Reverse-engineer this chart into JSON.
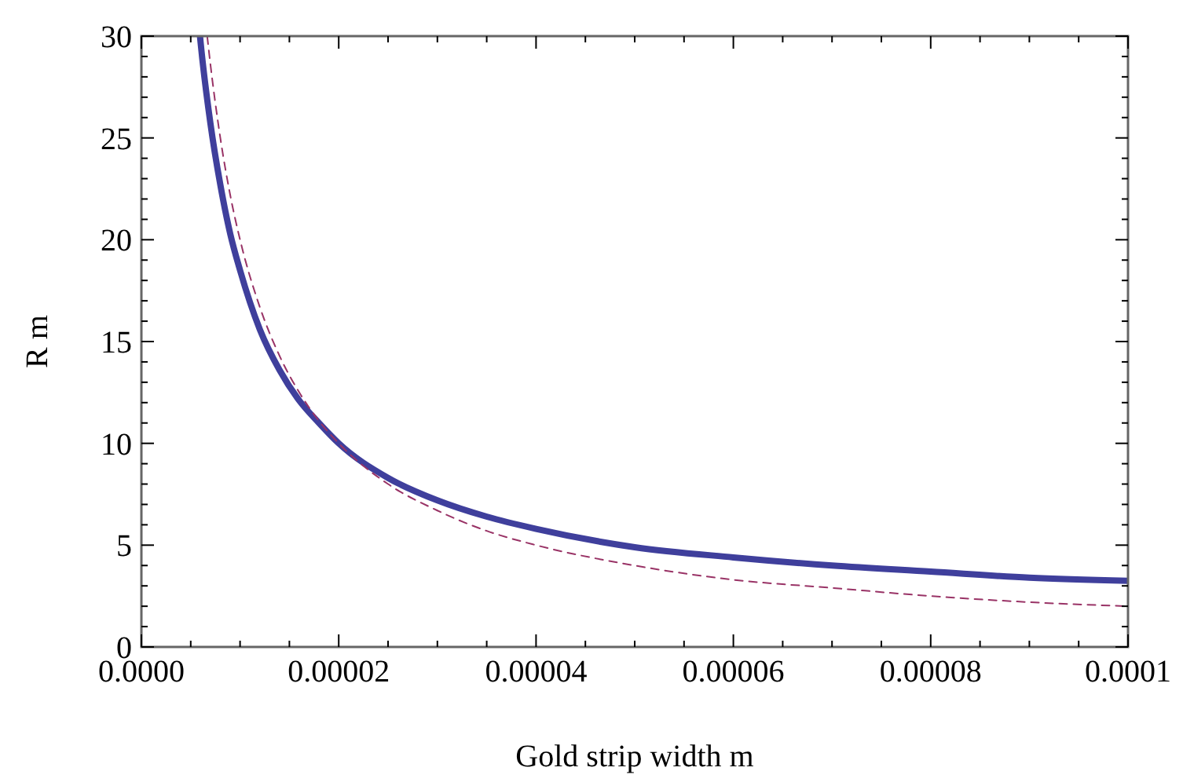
{
  "chart_data": {
    "type": "line",
    "xlabel": "Gold strip width m",
    "ylabel": "R m",
    "xlim": [
      0,
      0.0001
    ],
    "ylim": [
      0,
      30
    ],
    "xticks": [
      {
        "value": 0,
        "label": "0.0000"
      },
      {
        "value": 5e-06,
        "label": null
      },
      {
        "value": 1e-05,
        "label": null
      },
      {
        "value": 1.5e-05,
        "label": null
      },
      {
        "value": 2e-05,
        "label": "0.00002"
      },
      {
        "value": 2.5e-05,
        "label": null
      },
      {
        "value": 3e-05,
        "label": null
      },
      {
        "value": 3.5e-05,
        "label": null
      },
      {
        "value": 4e-05,
        "label": "0.00004"
      },
      {
        "value": 4.5e-05,
        "label": null
      },
      {
        "value": 5e-05,
        "label": null
      },
      {
        "value": 5.5e-05,
        "label": null
      },
      {
        "value": 6e-05,
        "label": "0.00006"
      },
      {
        "value": 6.5e-05,
        "label": null
      },
      {
        "value": 7e-05,
        "label": null
      },
      {
        "value": 7.5e-05,
        "label": null
      },
      {
        "value": 8e-05,
        "label": "0.00008"
      },
      {
        "value": 8.5e-05,
        "label": null
      },
      {
        "value": 9e-05,
        "label": null
      },
      {
        "value": 9.5e-05,
        "label": null
      },
      {
        "value": 0.0001,
        "label": "0.0001"
      }
    ],
    "yticks": [
      0,
      {
        "value": 1,
        "label": null
      },
      {
        "value": 2,
        "label": null
      },
      {
        "value": 3,
        "label": null
      },
      {
        "value": 4,
        "label": null
      },
      5,
      {
        "value": 6,
        "label": null
      },
      {
        "value": 7,
        "label": null
      },
      {
        "value": 8,
        "label": null
      },
      {
        "value": 9,
        "label": null
      },
      10,
      {
        "value": 11,
        "label": null
      },
      {
        "value": 12,
        "label": null
      },
      {
        "value": 13,
        "label": null
      },
      {
        "value": 14,
        "label": null
      },
      15,
      {
        "value": 16,
        "label": null
      },
      {
        "value": 17,
        "label": null
      },
      {
        "value": 18,
        "label": null
      },
      {
        "value": 19,
        "label": null
      },
      20,
      {
        "value": 21,
        "label": null
      },
      {
        "value": 22,
        "label": null
      },
      {
        "value": 23,
        "label": null
      },
      {
        "value": 24,
        "label": null
      },
      25,
      {
        "value": 26,
        "label": null
      },
      {
        "value": 27,
        "label": null
      },
      {
        "value": 28,
        "label": null
      },
      {
        "value": 29,
        "label": null
      },
      30
    ],
    "grid": false,
    "series": [
      {
        "color": "#3f3f9c",
        "line_style": "solid",
        "x": [
          5.94e-06,
          6e-06,
          7e-06,
          8e-06,
          9e-06,
          1e-05,
          1.2e-05,
          1.4e-05,
          1.6e-05,
          1.8e-05,
          2e-05,
          2.5e-05,
          3e-05,
          3.5e-05,
          4e-05,
          5e-05,
          6e-05,
          7e-05,
          8e-05,
          9e-05,
          0.0001
        ],
        "values": [
          30,
          29.7,
          25.7,
          22.7,
          20.3,
          18.5,
          15.6,
          13.6,
          12.1,
          11,
          10,
          8.3,
          7.2,
          6.4,
          5.8,
          4.9,
          4.4,
          4,
          3.7,
          3.4,
          3.25
        ]
      },
      {
        "color": "#993366",
        "line_style": "dashed",
        "x": [
          6.67e-06,
          7e-06,
          8e-06,
          9e-06,
          1e-05,
          1.2e-05,
          1.4e-05,
          1.6e-05,
          1.8e-05,
          2e-05,
          2.5e-05,
          3e-05,
          3.5e-05,
          4e-05,
          5e-05,
          6e-05,
          7e-05,
          8e-05,
          9e-05,
          0.0001
        ],
        "values": [
          30,
          28.6,
          25,
          22.2,
          20,
          16.7,
          14.3,
          12.5,
          11.1,
          10,
          8,
          6.7,
          5.7,
          5,
          4,
          3.3,
          2.9,
          2.5,
          2.2,
          2
        ]
      }
    ]
  }
}
